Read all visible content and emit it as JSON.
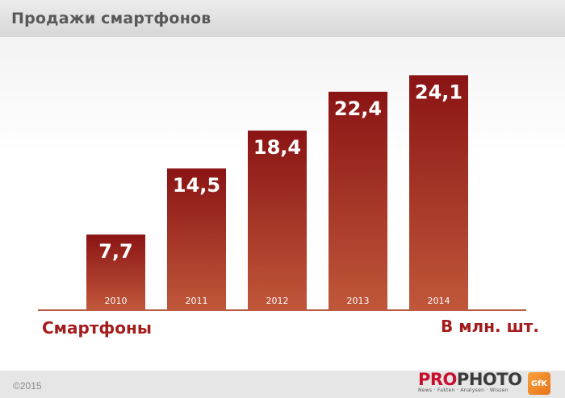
{
  "title": "Продажи смартфонов",
  "chart_data": {
    "type": "bar",
    "title": "Продажи смартфонов",
    "categories": [
      "2010",
      "2011",
      "2012",
      "2013",
      "2014"
    ],
    "values": [
      7.7,
      14.5,
      18.4,
      22.4,
      24.1
    ],
    "value_labels": [
      "7,7",
      "14,5",
      "18,4",
      "22,4",
      "24,1"
    ],
    "ylabel": "Смартфоны",
    "units": "В млн. шт.",
    "ylim": [
      0,
      26.7
    ],
    "grid": false,
    "bar_color_top": "#8a1414",
    "bar_color_bottom": "#c0573a"
  },
  "footer": {
    "copyright": "©2015",
    "logo_pro": "PRO",
    "logo_photo": "PHOTO",
    "tagline": "News · Fakten · Analysen · Wissen",
    "gfk_badge": "GfK"
  }
}
